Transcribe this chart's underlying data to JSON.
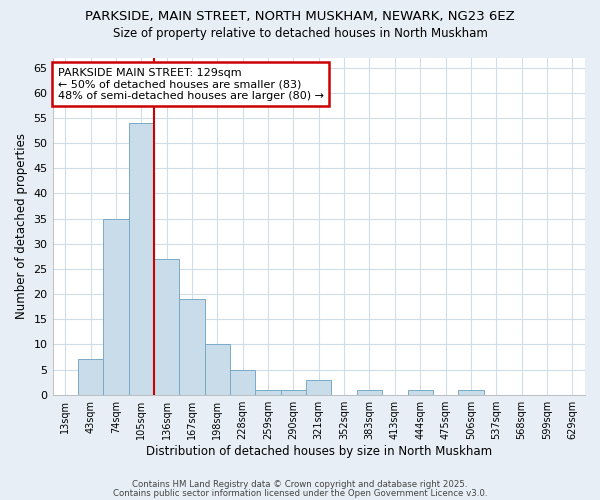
{
  "title_line1": "PARKSIDE, MAIN STREET, NORTH MUSKHAM, NEWARK, NG23 6EZ",
  "title_line2": "Size of property relative to detached houses in North Muskham",
  "xlabel": "Distribution of detached houses by size in North Muskham",
  "ylabel": "Number of detached properties",
  "categories": [
    "13sqm",
    "43sqm",
    "74sqm",
    "105sqm",
    "136sqm",
    "167sqm",
    "198sqm",
    "228sqm",
    "259sqm",
    "290sqm",
    "321sqm",
    "352sqm",
    "383sqm",
    "413sqm",
    "444sqm",
    "475sqm",
    "506sqm",
    "537sqm",
    "568sqm",
    "599sqm",
    "629sqm"
  ],
  "values": [
    0,
    7,
    35,
    54,
    27,
    19,
    10,
    5,
    1,
    1,
    3,
    0,
    1,
    0,
    1,
    0,
    1,
    0,
    0,
    0,
    0
  ],
  "bar_color": "#c8dcea",
  "bar_edge_color": "#7aaac8",
  "redline_color": "#cc0000",
  "annotation_text": "PARKSIDE MAIN STREET: 129sqm\n← 50% of detached houses are smaller (83)\n48% of semi-detached houses are larger (80) →",
  "annotation_box_color": "#ffffff",
  "annotation_box_edge_color": "#cc0000",
  "ylim": [
    0,
    67
  ],
  "yticks": [
    0,
    5,
    10,
    15,
    20,
    25,
    30,
    35,
    40,
    45,
    50,
    55,
    60,
    65
  ],
  "plot_bg_color": "#ffffff",
  "fig_bg_color": "#e8eef5",
  "grid_color": "#d0dce8",
  "footer_line1": "Contains HM Land Registry data © Crown copyright and database right 2025.",
  "footer_line2": "Contains public sector information licensed under the Open Government Licence v3.0."
}
